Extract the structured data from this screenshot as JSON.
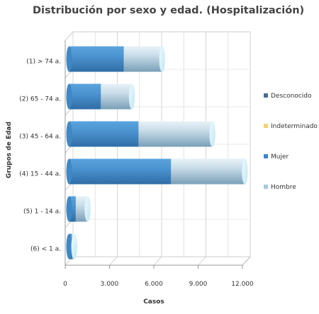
{
  "chart_data": {
    "type": "bar",
    "orientation": "horizontal",
    "stacked": true,
    "style": "3d-cylinder",
    "title": "Distribución por sexo y edad. (Hospitalización)",
    "xlabel": "Casos",
    "ylabel": "Grupos de Edad",
    "xlim": [
      0,
      12000
    ],
    "xticks": [
      "0",
      "3.000",
      "6.000",
      "9.000",
      "12.000"
    ],
    "xtick_values": [
      0,
      3000,
      6000,
      9000,
      12000
    ],
    "grid": true,
    "legend_position": "right",
    "categories": [
      "(1) > 74 a.",
      "(2) 65 - 74 a.",
      "(3) 45 - 64 a.",
      "(4) 15 - 44 a.",
      "(5) 1 - 14 a.",
      "(6) < 1 a."
    ],
    "series": [
      {
        "name": "Desconocido",
        "color": "#4a6d91",
        "values": [
          0,
          0,
          0,
          0,
          0,
          0
        ]
      },
      {
        "name": "Indeterminado",
        "color": "#f2d27a",
        "values": [
          0,
          0,
          0,
          0,
          0,
          0
        ]
      },
      {
        "name": "Mujer",
        "color": "#3d87c7",
        "values": [
          3700,
          2150,
          4700,
          6900,
          450,
          200
        ]
      },
      {
        "name": "Hombre",
        "color": "#a8c8dc",
        "values": [
          2600,
          2100,
          5000,
          5000,
          800,
          150
        ]
      }
    ]
  }
}
